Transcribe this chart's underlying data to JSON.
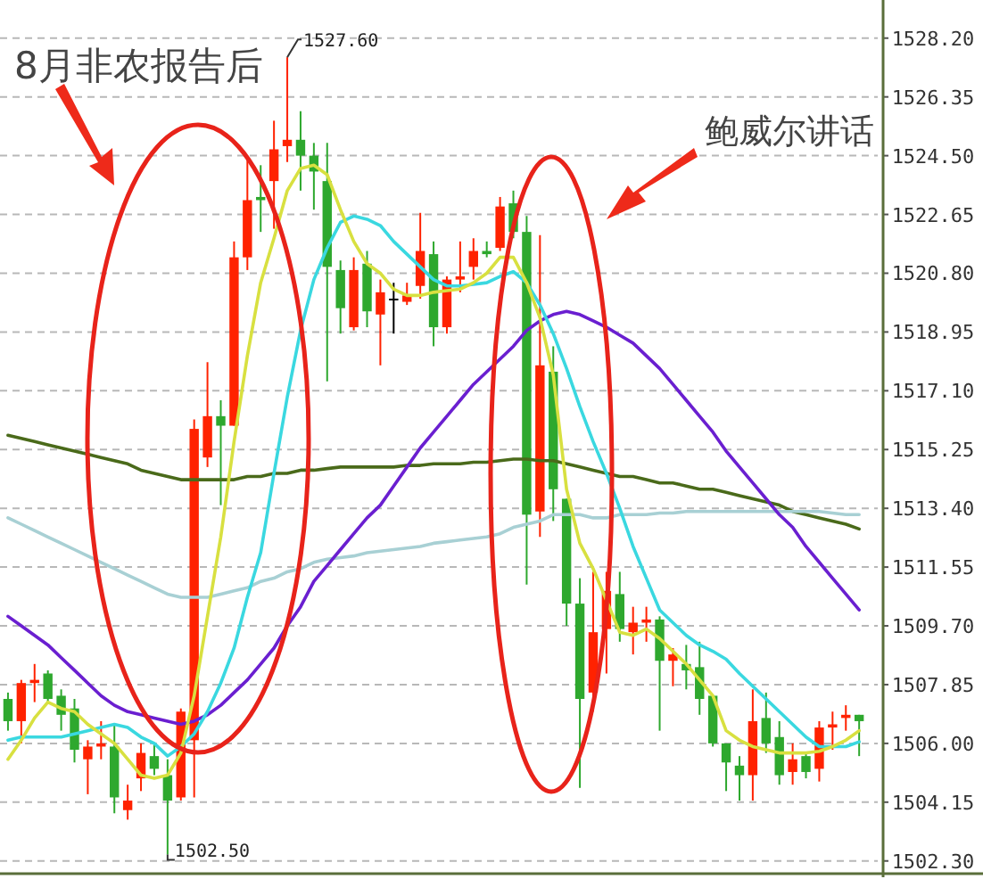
{
  "chart_data": {
    "type": "candlestick",
    "tick_labels": "y",
    "grid": "y",
    "categories": [
      null,
      null,
      null,
      null,
      null,
      null,
      null,
      null,
      null,
      null,
      null,
      null,
      null,
      null,
      null,
      null,
      null,
      null,
      null,
      null,
      null,
      null,
      null,
      null,
      null,
      null,
      null,
      null,
      null,
      null,
      null,
      null,
      null,
      null,
      null,
      null,
      null,
      null,
      null,
      null,
      null,
      null,
      null,
      null,
      null,
      null,
      null,
      null,
      null,
      null,
      null,
      null,
      null,
      null,
      null,
      null,
      null,
      null,
      null,
      null,
      null,
      null,
      null,
      null,
      null
    ],
    "ohlc": [
      [
        1507.4,
        1507.6,
        1506.4,
        1506.7
      ],
      [
        1506.7,
        1508.0,
        1506.0,
        1507.9
      ],
      [
        1507.9,
        1508.5,
        1507.3,
        1508.0
      ],
      [
        1508.2,
        1508.3,
        1507.3,
        1507.4
      ],
      [
        1507.5,
        1507.7,
        1506.4,
        1506.9
      ],
      [
        1507.1,
        1507.4,
        1505.4,
        1505.8
      ],
      [
        1505.5,
        1506.1,
        1504.4,
        1505.9
      ],
      [
        1505.9,
        1506.7,
        1505.5,
        1506.0
      ],
      [
        1505.9,
        1506.6,
        1503.8,
        1504.3
      ],
      [
        1503.9,
        1504.7,
        1503.6,
        1504.2
      ],
      [
        1504.9,
        1506.0,
        1504.5,
        1505.7
      ],
      [
        1505.6,
        1506.0,
        1505.0,
        1505.2
      ],
      [
        1505.0,
        1505.5,
        1502.5,
        1504.2
      ],
      [
        1504.3,
        1507.1,
        1504.2,
        1507.0
      ],
      [
        1506.1,
        1516.2,
        1504.3,
        1515.9
      ],
      [
        1515.0,
        1518.0,
        1514.7,
        1516.3
      ],
      [
        1516.3,
        1516.8,
        1513.5,
        1516.0
      ],
      [
        1516.0,
        1521.8,
        1516.0,
        1521.3
      ],
      [
        1521.3,
        1524.5,
        1520.9,
        1523.1
      ],
      [
        1523.2,
        1524.2,
        1522.1,
        1523.1
      ],
      [
        1523.7,
        1525.6,
        1522.2,
        1524.7
      ],
      [
        1524.8,
        1527.6,
        1524.3,
        1525.0
      ],
      [
        1525.0,
        1525.9,
        1523.4,
        1524.5
      ],
      [
        1524.5,
        1524.9,
        1522.8,
        1524.0
      ],
      [
        1523.7,
        1524.9,
        1517.4,
        1521.0
      ],
      [
        1520.9,
        1521.2,
        1518.9,
        1519.7
      ],
      [
        1519.1,
        1521.3,
        1519.0,
        1520.9
      ],
      [
        1521.1,
        1521.5,
        1519.1,
        1519.6
      ],
      [
        1519.5,
        1520.6,
        1517.9,
        1520.2
      ],
      [
        1520.0,
        1520.5,
        1518.9,
        1520.0
      ],
      [
        1519.9,
        1520.5,
        1519.8,
        1520.1
      ],
      [
        1520.4,
        1522.7,
        1520.0,
        1521.5
      ],
      [
        1521.4,
        1521.8,
        1518.5,
        1519.1
      ],
      [
        1519.1,
        1520.7,
        1518.9,
        1520.6
      ],
      [
        1520.6,
        1521.8,
        1520.2,
        1520.7
      ],
      [
        1521.0,
        1521.9,
        1520.6,
        1521.5
      ],
      [
        1521.5,
        1521.8,
        1521.3,
        1521.4
      ],
      [
        1521.6,
        1523.2,
        1521.5,
        1522.9
      ],
      [
        1523.0,
        1523.4,
        1521.9,
        1522.1
      ],
      [
        1522.1,
        1522.6,
        1511.0,
        1513.2
      ],
      [
        1513.3,
        1522.0,
        1512.5,
        1517.9
      ],
      [
        1517.7,
        1518.5,
        1513.0,
        1514.0
      ],
      [
        1513.7,
        1513.7,
        1509.7,
        1510.4
      ],
      [
        1510.4,
        1511.2,
        1504.6,
        1507.4
      ],
      [
        1507.6,
        1511.4,
        1507.0,
        1509.5
      ],
      [
        1509.6,
        1511.4,
        1508.2,
        1510.8
      ],
      [
        1510.7,
        1511.4,
        1509.2,
        1509.6
      ],
      [
        1509.5,
        1510.3,
        1508.8,
        1509.8
      ],
      [
        1509.8,
        1510.3,
        1509.2,
        1509.9
      ],
      [
        1509.9,
        1510.0,
        1506.4,
        1508.6
      ],
      [
        1508.6,
        1509.0,
        1507.8,
        1508.8
      ],
      [
        1508.5,
        1509.1,
        1507.7,
        1508.3
      ],
      [
        1508.4,
        1509.2,
        1506.9,
        1507.4
      ],
      [
        1507.5,
        1507.5,
        1505.9,
        1506.0
      ],
      [
        1506.0,
        1506.0,
        1504.5,
        1505.4
      ],
      [
        1505.3,
        1505.6,
        1504.2,
        1505.0
      ],
      [
        1505.0,
        1507.7,
        1504.2,
        1506.7
      ],
      [
        1506.8,
        1507.6,
        1505.7,
        1506.0
      ],
      [
        1506.2,
        1506.7,
        1504.7,
        1505.0
      ],
      [
        1505.1,
        1506.0,
        1504.7,
        1505.5
      ],
      [
        1505.6,
        1505.7,
        1504.9,
        1505.1
      ],
      [
        1505.2,
        1506.7,
        1504.8,
        1506.5
      ],
      [
        1506.5,
        1507.0,
        1505.8,
        1506.6
      ],
      [
        1506.8,
        1507.2,
        1506.4,
        1506.9
      ],
      [
        1506.9,
        1506.9,
        1505.6,
        1506.7
      ]
    ],
    "colors": [
      "#2ea82e",
      "#ff2200",
      "#ff2200",
      "#2ea82e",
      "#2ea82e",
      "#2ea82e",
      "#ff2200",
      "#ff2200",
      "#2ea82e",
      "#ff2200",
      "#ff2200",
      "#2ea82e",
      "#2ea82e",
      "#ff2200",
      "#ff2200",
      "#ff2200",
      "#2ea82e",
      "#ff2200",
      "#ff2200",
      "#2ea82e",
      "#ff2200",
      "#ff2200",
      "#2ea82e",
      "#2ea82e",
      "#2ea82e",
      "#2ea82e",
      "#ff2200",
      "#2ea82e",
      "#ff2200",
      "#000000",
      "#ff2200",
      "#ff2200",
      "#2ea82e",
      "#ff2200",
      "#ff2200",
      "#ff2200",
      "#2ea82e",
      "#ff2200",
      "#2ea82e",
      "#2ea82e",
      "#ff2200",
      "#2ea82e",
      "#2ea82e",
      "#2ea82e",
      "#ff2200",
      "#ff2200",
      "#2ea82e",
      "#ff2200",
      "#ff2200",
      "#2ea82e",
      "#ff2200",
      "#2ea82e",
      "#2ea82e",
      "#2ea82e",
      "#2ea82e",
      "#2ea82e",
      "#ff2200",
      "#2ea82e",
      "#2ea82e",
      "#ff2200",
      "#2ea82e",
      "#ff2200",
      "#ff2200",
      "#ff2200",
      "#2ea82e"
    ],
    "series": [
      {
        "type": "line",
        "color": "#4a6a1a",
        "values": [
          1515.7,
          1515.6,
          1515.5,
          1515.4,
          1515.3,
          1515.2,
          1515.1,
          1515.0,
          1514.9,
          1514.8,
          1514.6,
          1514.5,
          1514.4,
          1514.3,
          1514.3,
          1514.3,
          1514.3,
          1514.3,
          1514.4,
          1514.4,
          1514.5,
          1514.5,
          1514.6,
          1514.6,
          1514.65,
          1514.7,
          1514.7,
          1514.7,
          1514.7,
          1514.7,
          1514.75,
          1514.75,
          1514.8,
          1514.8,
          1514.8,
          1514.85,
          1514.85,
          1514.9,
          1514.95,
          1514.95,
          1514.9,
          1514.9,
          1514.8,
          1514.7,
          1514.6,
          1514.5,
          1514.4,
          1514.4,
          1514.3,
          1514.2,
          1514.2,
          1514.1,
          1514.0,
          1514.0,
          1513.9,
          1513.8,
          1513.7,
          1513.6,
          1513.5,
          1513.3,
          1513.2,
          1513.1,
          1513.0,
          1512.9,
          1512.75
        ]
      },
      {
        "type": "line",
        "color": "#a8d0d4",
        "values": [
          1513.1,
          1512.9,
          1512.7,
          1512.5,
          1512.3,
          1512.1,
          1511.9,
          1511.7,
          1511.5,
          1511.3,
          1511.1,
          1510.9,
          1510.7,
          1510.6,
          1510.6,
          1510.6,
          1510.7,
          1510.8,
          1510.9,
          1511.1,
          1511.2,
          1511.4,
          1511.5,
          1511.7,
          1511.8,
          1511.85,
          1511.9,
          1512.0,
          1512.05,
          1512.1,
          1512.15,
          1512.2,
          1512.3,
          1512.35,
          1512.4,
          1512.45,
          1512.5,
          1512.6,
          1512.8,
          1512.9,
          1513.0,
          1513.2,
          1513.2,
          1513.2,
          1513.1,
          1513.1,
          1513.2,
          1513.2,
          1513.2,
          1513.25,
          1513.25,
          1513.3,
          1513.3,
          1513.3,
          1513.3,
          1513.3,
          1513.3,
          1513.3,
          1513.3,
          1513.3,
          1513.3,
          1513.3,
          1513.25,
          1513.2,
          1513.2
        ]
      },
      {
        "type": "line",
        "color": "#6a1fd0",
        "values": [
          1510.0,
          1509.7,
          1509.4,
          1509.1,
          1508.7,
          1508.3,
          1507.9,
          1507.5,
          1507.2,
          1507.0,
          1506.9,
          1506.8,
          1506.7,
          1506.6,
          1506.7,
          1506.9,
          1507.2,
          1507.6,
          1508.0,
          1508.5,
          1509.0,
          1509.7,
          1510.3,
          1511.1,
          1511.6,
          1512.1,
          1512.6,
          1513.1,
          1513.5,
          1514.1,
          1514.7,
          1515.3,
          1515.8,
          1516.3,
          1516.8,
          1517.3,
          1517.7,
          1518.1,
          1518.5,
          1519.0,
          1519.3,
          1519.5,
          1519.6,
          1519.5,
          1519.3,
          1519.1,
          1518.85,
          1518.6,
          1518.2,
          1517.8,
          1517.3,
          1516.8,
          1516.3,
          1515.8,
          1515.2,
          1514.7,
          1514.2,
          1513.7,
          1513.2,
          1512.8,
          1512.2,
          1511.7,
          1511.2,
          1510.7,
          1510.2
        ]
      },
      {
        "type": "line",
        "color": "#3ad8e0",
        "values": [
          1506.1,
          1506.2,
          1506.2,
          1506.2,
          1506.2,
          1506.3,
          1506.4,
          1506.5,
          1506.6,
          1506.5,
          1506.2,
          1506.0,
          1505.6,
          1505.9,
          1506.3,
          1507.0,
          1507.9,
          1509.0,
          1510.6,
          1512.0,
          1514.5,
          1516.9,
          1519.0,
          1520.6,
          1521.6,
          1522.4,
          1522.6,
          1522.5,
          1522.3,
          1521.8,
          1521.4,
          1521.0,
          1520.6,
          1520.4,
          1520.4,
          1520.45,
          1520.5,
          1520.7,
          1520.85,
          1520.5,
          1519.8,
          1518.9,
          1517.8,
          1516.6,
          1515.5,
          1514.5,
          1513.4,
          1512.2,
          1511.2,
          1510.2,
          1509.8,
          1509.4,
          1509.1,
          1508.9,
          1508.65,
          1508.2,
          1507.8,
          1507.4,
          1507.0,
          1506.6,
          1506.2,
          1505.9,
          1505.9,
          1505.9,
          1506.05
        ]
      },
      {
        "type": "line",
        "color": "#d8e040",
        "values": [
          1505.5,
          1506.1,
          1506.8,
          1507.3,
          1507.1,
          1507.0,
          1506.6,
          1506.3,
          1506.0,
          1505.5,
          1505.0,
          1504.9,
          1505.0,
          1505.7,
          1507.5,
          1510.0,
          1512.5,
          1515.5,
          1518.2,
          1520.5,
          1521.9,
          1523.4,
          1524.1,
          1524.2,
          1523.9,
          1522.8,
          1521.8,
          1521.1,
          1520.8,
          1520.3,
          1520.1,
          1520.1,
          1520.2,
          1520.25,
          1520.3,
          1520.5,
          1520.8,
          1521.3,
          1521.3,
          1520.5,
          1519.4,
          1517.6,
          1514.0,
          1512.3,
          1511.5,
          1510.5,
          1509.5,
          1509.4,
          1509.6,
          1509.3,
          1508.9,
          1508.5,
          1508.0,
          1507.5,
          1506.4,
          1506.1,
          1505.9,
          1505.8,
          1505.7,
          1505.7,
          1505.7,
          1505.75,
          1505.9,
          1506.1,
          1506.4
        ]
      }
    ],
    "ylim": [
      1501.9,
      1529.4
    ],
    "yticks": [
      {
        "value": 1502.3,
        "label": "1502.30"
      },
      {
        "value": 1504.15,
        "label": "1504.15"
      },
      {
        "value": 1506.0,
        "label": "1506.00"
      },
      {
        "value": 1507.85,
        "label": "1507.85"
      },
      {
        "value": 1509.7,
        "label": "1509.70"
      },
      {
        "value": 1511.55,
        "label": "1511.55"
      },
      {
        "value": 1513.4,
        "label": "1513.40"
      },
      {
        "value": 1515.25,
        "label": "1515.25"
      },
      {
        "value": 1517.1,
        "label": "1517.10"
      },
      {
        "value": 1518.95,
        "label": "1518.95"
      },
      {
        "value": 1520.8,
        "label": "1520.80"
      },
      {
        "value": 1522.65,
        "label": "1522.65"
      },
      {
        "value": 1524.5,
        "label": "1524.50"
      },
      {
        "value": 1526.35,
        "label": "1526.35"
      },
      {
        "value": 1528.2,
        "label": "1528.20"
      }
    ],
    "annotations": [
      "8月非农报告后",
      "鲍威尔讲话",
      "1527.60",
      "1502.50"
    ]
  }
}
